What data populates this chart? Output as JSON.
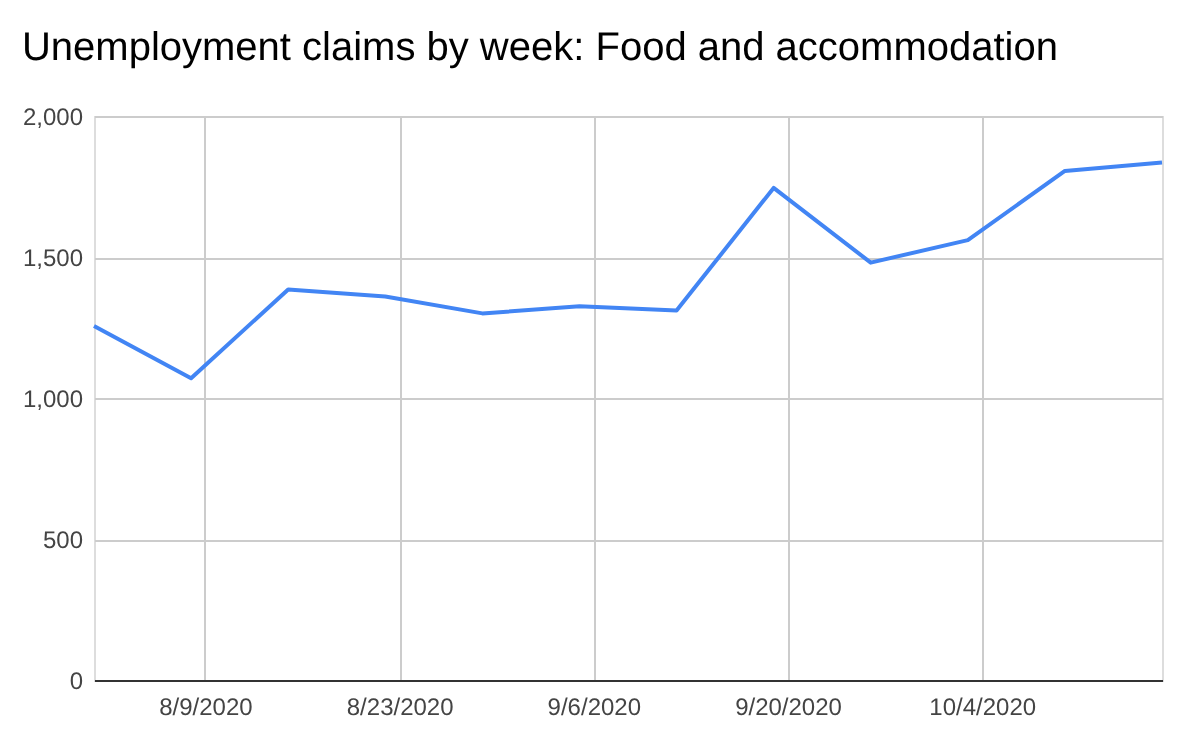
{
  "chart_data": {
    "type": "line",
    "title": "Unemployment claims by week: Food and accommodation",
    "x": [
      "2020-08-01",
      "2020-08-08",
      "2020-08-15",
      "2020-08-22",
      "2020-08-29",
      "2020-09-05",
      "2020-09-12",
      "2020-09-19",
      "2020-09-26",
      "2020-10-03",
      "2020-10-10",
      "2020-10-17"
    ],
    "series": [
      {
        "color": "#4285f4",
        "values": [
          1255,
          1070,
          1385,
          1360,
          1300,
          1325,
          1310,
          1745,
          1480,
          1560,
          1805,
          1835
        ]
      }
    ],
    "xlim": [
      "2020-08-01",
      "2020-10-17"
    ],
    "xticks": [
      {
        "value": "2020-08-09",
        "label": "8/9/2020"
      },
      {
        "value": "2020-08-23",
        "label": "8/23/2020"
      },
      {
        "value": "2020-09-06",
        "label": "9/6/2020"
      },
      {
        "value": "2020-09-20",
        "label": "9/20/2020"
      },
      {
        "value": "2020-10-04",
        "label": "10/4/2020"
      }
    ],
    "ylim": [
      0,
      2000
    ],
    "yticks": [
      {
        "value": 0,
        "label": "0"
      },
      {
        "value": 500,
        "label": "500"
      },
      {
        "value": 1000,
        "label": "1,000"
      },
      {
        "value": 1500,
        "label": "1,500"
      },
      {
        "value": 2000,
        "label": "2,000"
      }
    ],
    "grid": true,
    "marker": "none",
    "line_style": "solid"
  }
}
